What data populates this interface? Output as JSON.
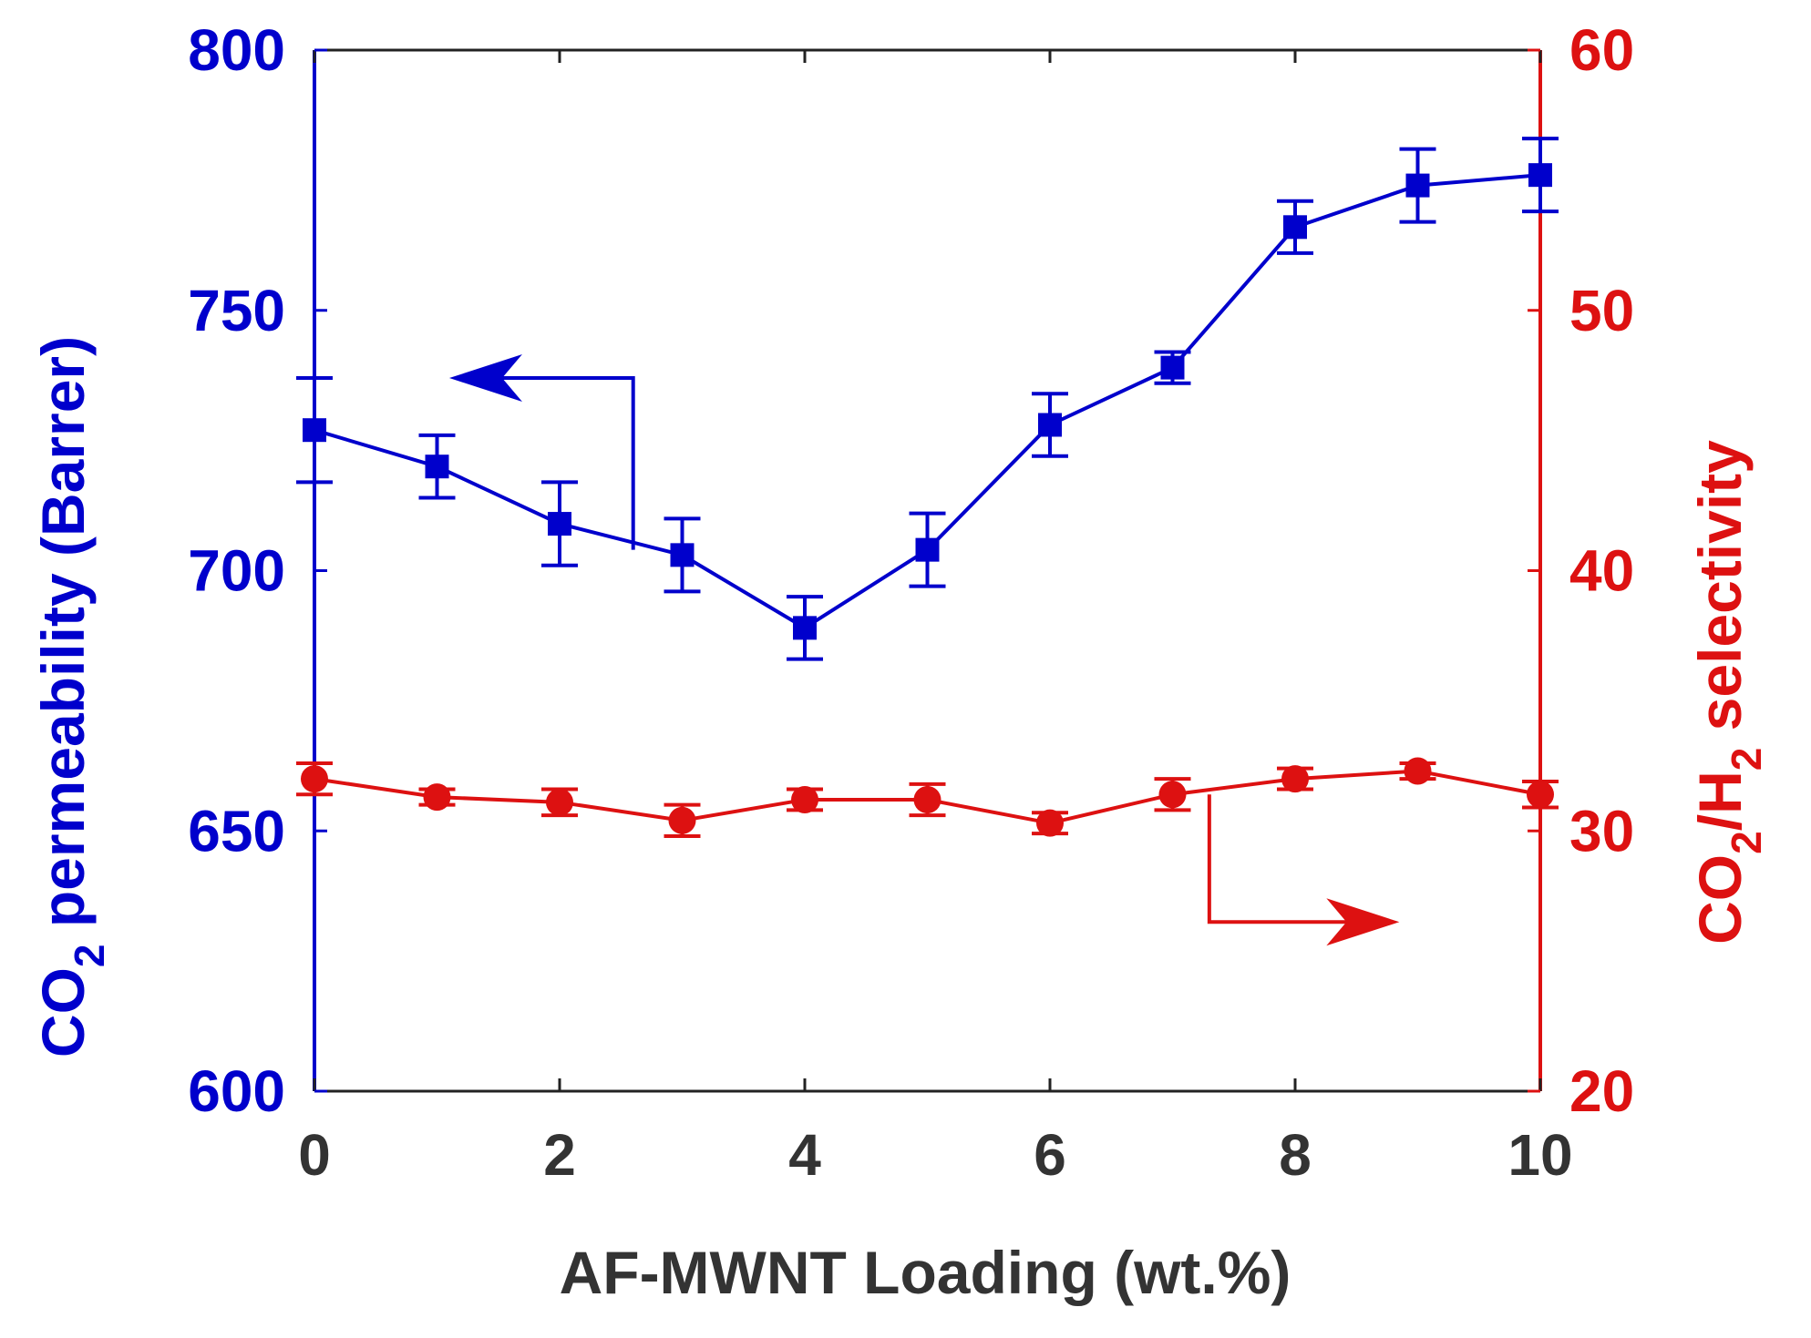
{
  "chart_data": {
    "type": "line",
    "xlabel": "AF-MWNT Loading (wt.%)",
    "x": [
      0,
      1,
      2,
      3,
      4,
      5,
      6,
      7,
      8,
      9,
      10
    ],
    "xlim": [
      0,
      10
    ],
    "xticks": [
      "0",
      "2",
      "4",
      "6",
      "8",
      "10"
    ],
    "ylabel_left": {
      "prefix": "CO",
      "sub": "2",
      "suffix": " permeability (Barrer)"
    },
    "ylabel_right": {
      "p1": "CO",
      "s1": "2",
      "p2": "/H",
      "s2": "2",
      "p3": " selectivity"
    },
    "ylim_left": [
      600,
      800
    ],
    "ylim_right": [
      20,
      60
    ],
    "yticks_left": [
      "600",
      "650",
      "700",
      "750",
      "800"
    ],
    "yticks_right": [
      "20",
      "30",
      "40",
      "50",
      "60"
    ],
    "series": [
      {
        "name": "CO2 permeability",
        "axis": "left",
        "color": "#0000cc",
        "marker": "square",
        "values": [
          727,
          720,
          709,
          703,
          689,
          704,
          728,
          739,
          766,
          774,
          776
        ],
        "errors": [
          10,
          6,
          8,
          7,
          6,
          7,
          6,
          3,
          5,
          7,
          7
        ]
      },
      {
        "name": "CO2/H2 selectivity",
        "axis": "right",
        "color": "#dd1111",
        "marker": "circle",
        "values": [
          32.0,
          31.3,
          31.1,
          30.4,
          31.2,
          31.2,
          30.3,
          31.4,
          32.0,
          32.3,
          31.4
        ],
        "errors": [
          0.6,
          0.3,
          0.5,
          0.6,
          0.4,
          0.6,
          0.4,
          0.6,
          0.4,
          0.3,
          0.5
        ]
      }
    ],
    "annotations": [
      {
        "type": "arrow",
        "points_to": "left axis",
        "color": "#0000cc"
      },
      {
        "type": "arrow",
        "points_to": "right axis",
        "color": "#dd1111"
      }
    ]
  }
}
